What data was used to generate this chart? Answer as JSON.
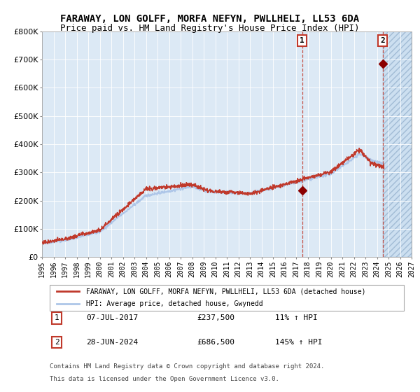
{
  "title": "FARAWAY, LON GOLFF, MORFA NEFYN, PWLLHELI, LL53 6DA",
  "subtitle": "Price paid vs. HM Land Registry's House Price Index (HPI)",
  "ylim": [
    0,
    800000
  ],
  "yticks": [
    0,
    100000,
    200000,
    300000,
    400000,
    500000,
    600000,
    700000,
    800000
  ],
  "ytick_labels": [
    "£0",
    "£100K",
    "£200K",
    "£300K",
    "£400K",
    "£500K",
    "£600K",
    "£700K",
    "£800K"
  ],
  "year_start": 1995,
  "year_end": 2027,
  "hpi_color": "#aec6e8",
  "price_color": "#c0392b",
  "sale1_date_num": 2017.52,
  "sale1_price": 237500,
  "sale2_date_num": 2024.49,
  "sale2_price": 686500,
  "legend_line1": "FARAWAY, LON GOLFF, MORFA NEFYN, PWLLHELI, LL53 6DA (detached house)",
  "legend_line2": "HPI: Average price, detached house, Gwynedd",
  "table_row1": [
    "1",
    "07-JUL-2017",
    "£237,500",
    "11% ↑ HPI"
  ],
  "table_row2": [
    "2",
    "28-JUN-2024",
    "£686,500",
    "145% ↑ HPI"
  ],
  "footnote1": "Contains HM Land Registry data © Crown copyright and database right 2024.",
  "footnote2": "This data is licensed under the Open Government Licence v3.0.",
  "background_plot": "#dce9f5",
  "background_future": "#ccdff0",
  "grid_color": "#ffffff",
  "title_fontsize": 10,
  "subtitle_fontsize": 9
}
